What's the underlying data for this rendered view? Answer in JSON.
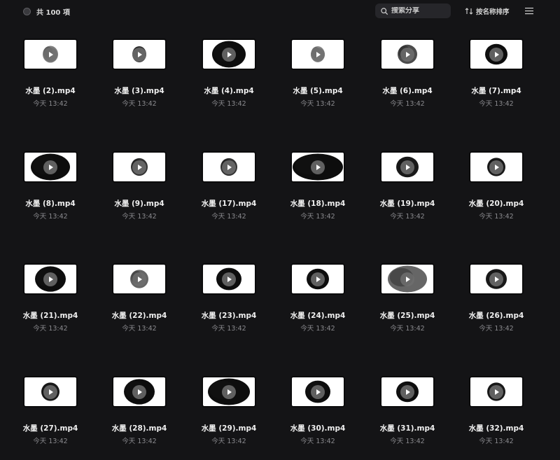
{
  "toolbar": {
    "count_label": "共 100 項",
    "search_placeholder": "搜索分享",
    "sort_label": "按名称排序"
  },
  "files": [
    {
      "name": "水墨 (2).mp4",
      "time": "今天 13:42"
    },
    {
      "name": "水墨 (3).mp4",
      "time": "今天 13:42"
    },
    {
      "name": "水墨 (4).mp4",
      "time": "今天 13:42"
    },
    {
      "name": "水墨 (5).mp4",
      "time": "今天 13:42"
    },
    {
      "name": "水墨 (6).mp4",
      "time": "今天 13:42"
    },
    {
      "name": "水墨 (7).mp4",
      "time": "今天 13:42"
    },
    {
      "name": "水墨 (8).mp4",
      "time": "今天 13:42"
    },
    {
      "name": "水墨 (9).mp4",
      "time": "今天 13:42"
    },
    {
      "name": "水墨 (17).mp4",
      "time": "今天 13:42"
    },
    {
      "name": "水墨 (18).mp4",
      "time": "今天 13:42"
    },
    {
      "name": "水墨 (19).mp4",
      "time": "今天 13:42"
    },
    {
      "name": "水墨 (20).mp4",
      "time": "今天 13:42"
    },
    {
      "name": "水墨 (21).mp4",
      "time": "今天 13:42"
    },
    {
      "name": "水墨 (22).mp4",
      "time": "今天 13:42"
    },
    {
      "name": "水墨 (23).mp4",
      "time": "今天 13:42"
    },
    {
      "name": "水墨 (24).mp4",
      "time": "今天 13:42"
    },
    {
      "name": "水墨 (25).mp4",
      "time": "今天 13:42"
    },
    {
      "name": "水墨 (26).mp4",
      "time": "今天 13:42"
    },
    {
      "name": "水墨 (27).mp4",
      "time": "今天 13:42"
    },
    {
      "name": "水墨 (28).mp4",
      "time": "今天 13:42"
    },
    {
      "name": "水墨 (29).mp4",
      "time": "今天 13:42"
    },
    {
      "name": "水墨 (30).mp4",
      "time": "今天 13:42"
    },
    {
      "name": "水墨 (31).mp4",
      "time": "今天 13:42"
    },
    {
      "name": "水墨 (32).mp4",
      "time": "今天 13:42"
    }
  ],
  "icons": {
    "select_all": "radio-circle-icon",
    "search": "search-icon",
    "sort": "sort-arrows-icon",
    "menu": "hamburger-menu-icon",
    "play": "play-icon"
  }
}
